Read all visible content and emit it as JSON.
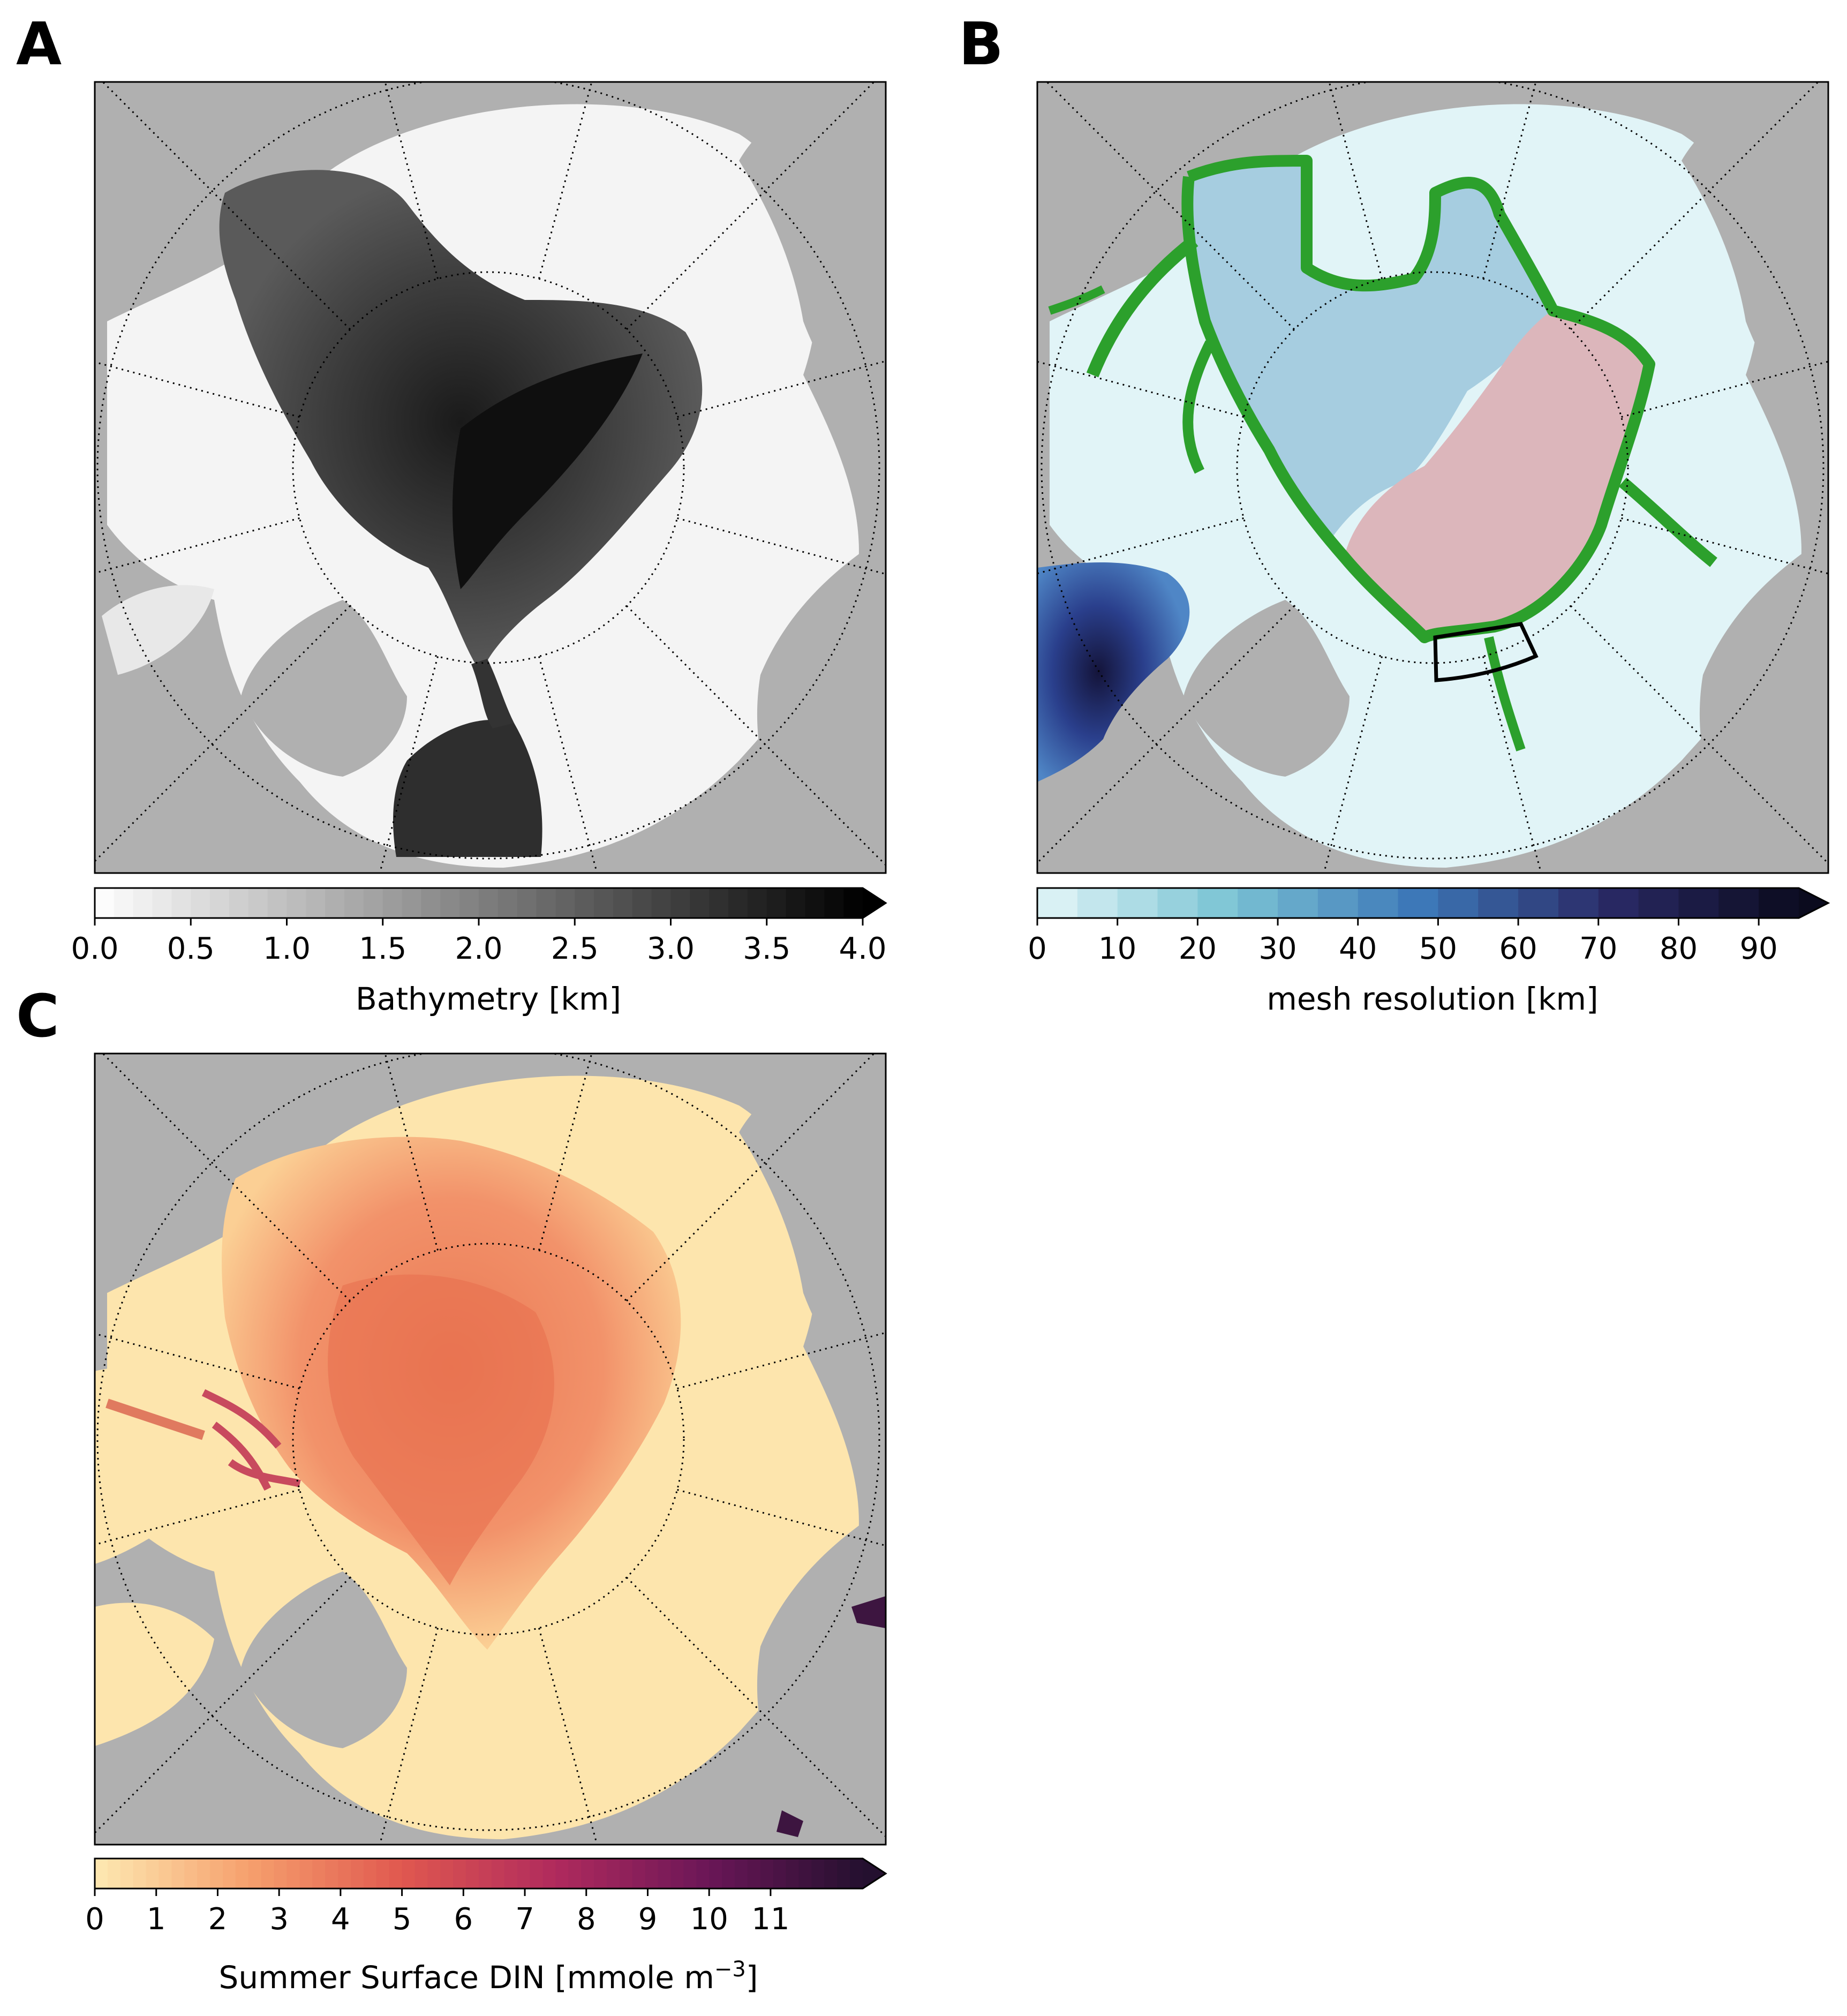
{
  "figure": {
    "panels": [
      {
        "letter": "A",
        "colorbar": {
          "label": "Bathymetry [km]",
          "ticks": [
            "0.0",
            "0.5",
            "1.0",
            "1.5",
            "2.0",
            "2.5",
            "3.0",
            "3.5",
            "4.0"
          ],
          "range": [
            0,
            4
          ],
          "steps": 40,
          "stops": [
            "#ffffff",
            "#000000"
          ],
          "extend": "max"
        }
      },
      {
        "letter": "B",
        "colorbar": {
          "label": "mesh resolution [km]",
          "ticks": [
            "0",
            "10",
            "20",
            "30",
            "40",
            "50",
            "60",
            "70",
            "80",
            "90"
          ],
          "range": [
            0,
            95
          ],
          "steps": 19,
          "stops": [
            "#e4f6f8",
            "#7cc4d4",
            "#3d78b8",
            "#2a2a66",
            "#0b0b1e"
          ],
          "extend": "max"
        },
        "regions": {
          "region_1": "#a6cde0",
          "region_2": "#dcb6bb",
          "shelf_contour": "#2ca02c",
          "box": "#000000"
        }
      },
      {
        "letter": "C",
        "colorbar": {
          "label": "Summer Surface DIN [mmole m",
          "label_sup": "−3",
          "label_tail": "]",
          "ticks": [
            "0",
            "1",
            "2",
            "3",
            "4",
            "5",
            "6",
            "7",
            "8",
            "9",
            "10",
            "11"
          ],
          "range": [
            0,
            12.5
          ],
          "steps": 60,
          "stops": [
            "#fde9b2",
            "#f6a06d",
            "#e0584f",
            "#b02a5d",
            "#6a1657",
            "#24102f"
          ],
          "extend": "max"
        }
      }
    ],
    "map_colors": {
      "land": "#b0b0b0",
      "frame": "#000000",
      "gridline": "#000000"
    }
  }
}
